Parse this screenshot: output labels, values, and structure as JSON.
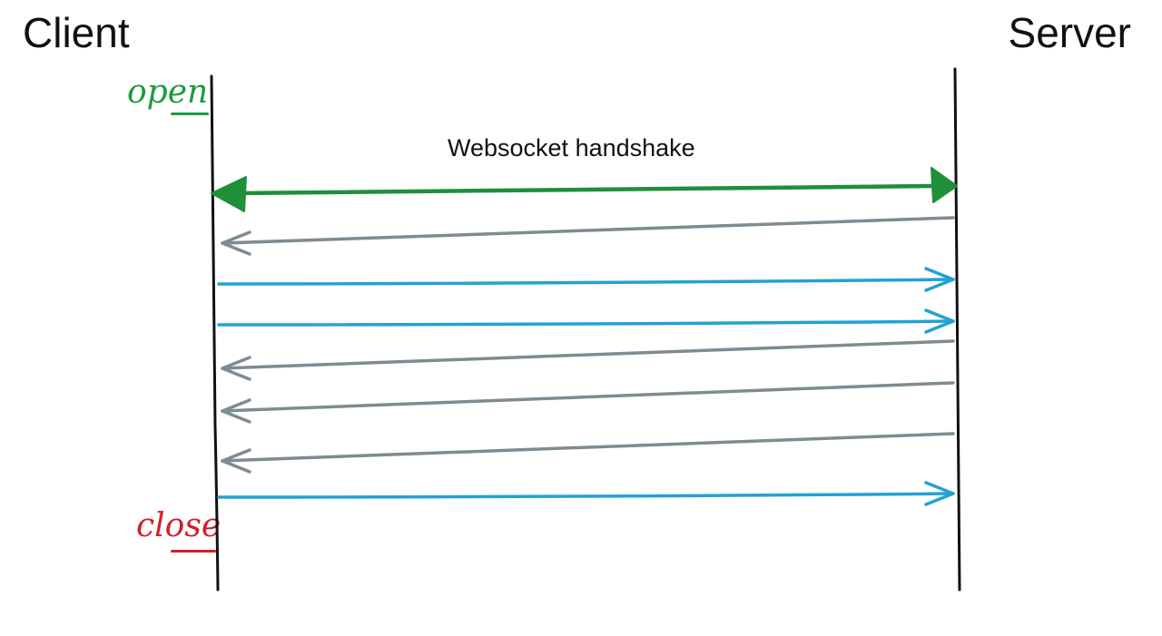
{
  "participants": {
    "client": "Client",
    "server": "Server"
  },
  "states": {
    "open": "open",
    "close": "close"
  },
  "handshake_label": "Websocket handshake",
  "colors": {
    "text": "#111111",
    "lifeline": "#111111",
    "open": "#1f9a3a",
    "close": "#d0202e",
    "handshake": "#1f8f3a",
    "server_to_client": "#7d8c93",
    "client_to_server": "#22a2d3"
  },
  "messages": [
    {
      "direction": "both",
      "kind": "handshake"
    },
    {
      "direction": "server-to-client",
      "kind": "message"
    },
    {
      "direction": "client-to-server",
      "kind": "message"
    },
    {
      "direction": "client-to-server",
      "kind": "message"
    },
    {
      "direction": "server-to-client",
      "kind": "message"
    },
    {
      "direction": "server-to-client",
      "kind": "message"
    },
    {
      "direction": "server-to-client",
      "kind": "message"
    },
    {
      "direction": "client-to-server",
      "kind": "message"
    }
  ]
}
